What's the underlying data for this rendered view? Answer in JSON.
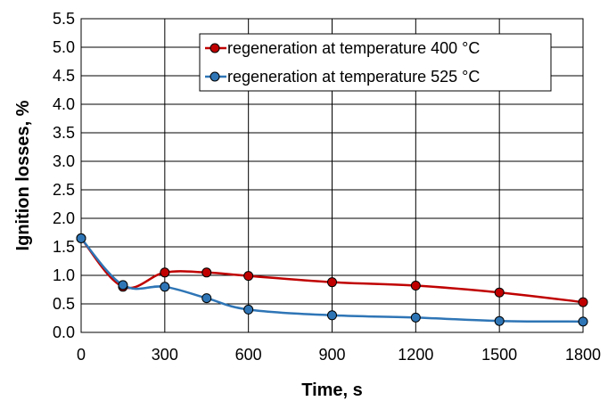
{
  "chart_data": {
    "type": "line",
    "title": "",
    "xlabel": "Time, s",
    "ylabel": "Ignition losses, %",
    "xlim": [
      0,
      1800
    ],
    "ylim": [
      0,
      5.5
    ],
    "xticks": [
      0,
      300,
      600,
      900,
      1200,
      1500,
      1800
    ],
    "xtick_labels": [
      "0",
      "300",
      "600",
      "900",
      "1200",
      "1500",
      "1800"
    ],
    "yticks": [
      0,
      0.5,
      1,
      1.5,
      2,
      2.5,
      3,
      3.5,
      4,
      4.5,
      5,
      5.5
    ],
    "ytick_labels": [
      "0.0",
      "0.5",
      "1.0",
      "1.5",
      "2.0",
      "2.5",
      "3.0",
      "3.5",
      "4.0",
      "4.5",
      "5.0",
      "5.5"
    ],
    "grid": true,
    "legend_position": "top-right",
    "series": [
      {
        "name": "regeneration at temperature 400 °C",
        "color": "#c00000",
        "marker_color": "#c00000",
        "x": [
          0,
          150,
          300,
          450,
          600,
          900,
          1200,
          1500,
          1800
        ],
        "y": [
          1.65,
          0.8,
          1.05,
          1.05,
          0.99,
          0.88,
          0.82,
          0.7,
          0.53
        ]
      },
      {
        "name": "regeneration at temperature 525 °C",
        "color": "#2e75b6",
        "marker_color": "#2e75b6",
        "x": [
          0,
          150,
          300,
          450,
          600,
          900,
          1200,
          1500,
          1800
        ],
        "y": [
          1.65,
          0.83,
          0.8,
          0.6,
          0.4,
          0.3,
          0.26,
          0.2,
          0.19
        ]
      }
    ]
  }
}
